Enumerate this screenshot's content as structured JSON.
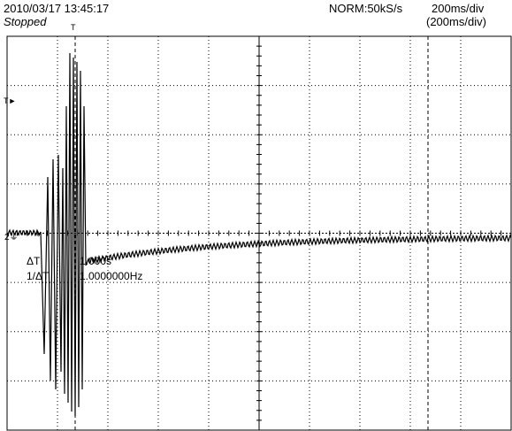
{
  "header": {
    "datetime": "2010/03/17  13:45:17",
    "status": "Stopped",
    "sample_mode": "NORM:50kS/s",
    "time_div": "200ms/div",
    "time_div_secondary": "(200ms/div)"
  },
  "markers": {
    "trigger_top": "T",
    "trigger_level": "T",
    "channel": "2"
  },
  "cursor_readout": {
    "delta_t_label": "ΔT",
    "delta_t_value": "1.000s",
    "inv_delta_t_label": "1/ΔT",
    "inv_delta_t_value": "1.0000000Hz"
  },
  "colors": {
    "trace": "#000000",
    "grid": "#000000",
    "background": "#ffffff"
  }
}
